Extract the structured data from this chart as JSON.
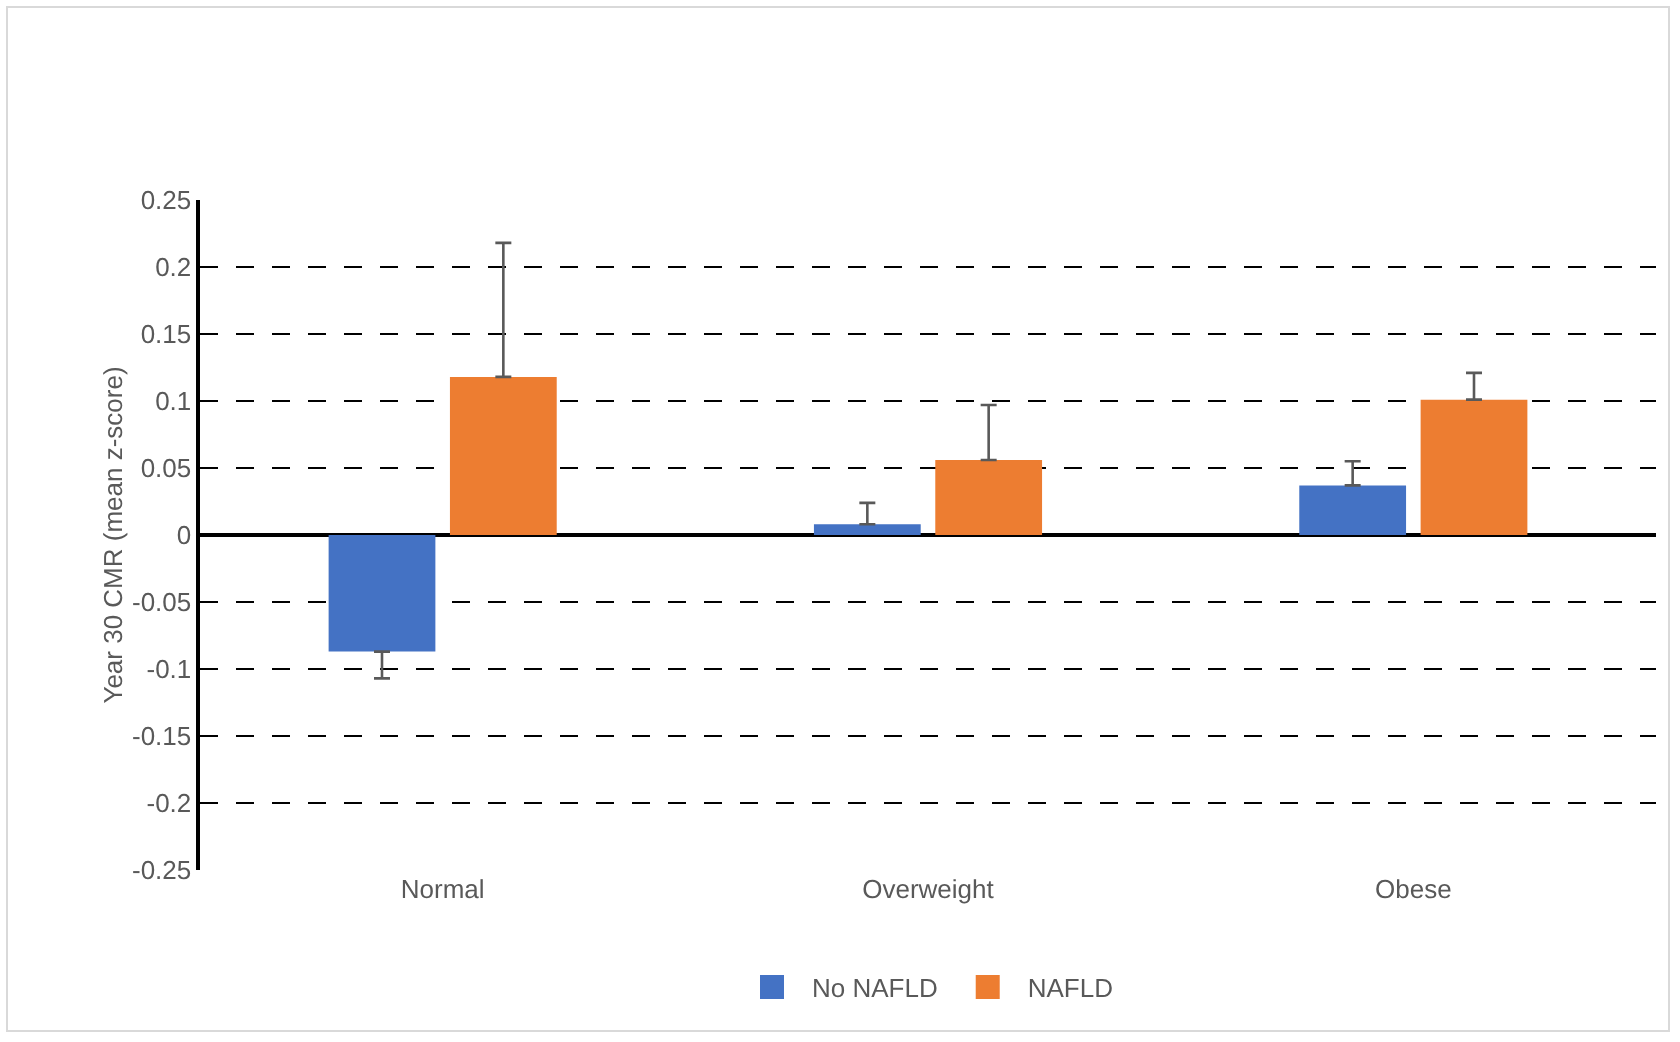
{
  "chart_data": {
    "type": "bar",
    "ylabel": "Year 30 CMR (mean z-score)",
    "categories": [
      "Normal",
      "Overweight",
      "Obese"
    ],
    "series": [
      {
        "name": "No NAFLD",
        "color": "#4472c4",
        "values": [
          -0.087,
          0.008,
          0.037
        ],
        "errors": [
          [
            -0.107,
            -0.087
          ],
          [
            0.008,
            0.024
          ],
          [
            0.037,
            0.055
          ]
        ]
      },
      {
        "name": "NAFLD",
        "color": "#ed7d31",
        "values": [
          0.118,
          0.056,
          0.101
        ],
        "errors": [
          [
            0.118,
            0.218
          ],
          [
            0.056,
            0.097
          ],
          [
            0.101,
            0.121
          ]
        ]
      }
    ],
    "ylim": [
      -0.25,
      0.25
    ],
    "yticks": [
      0.25,
      0.2,
      0.15,
      0.1,
      0.05,
      0,
      -0.05,
      -0.1,
      -0.15,
      -0.2,
      -0.25
    ],
    "grid": "y",
    "legend": "bottom"
  }
}
